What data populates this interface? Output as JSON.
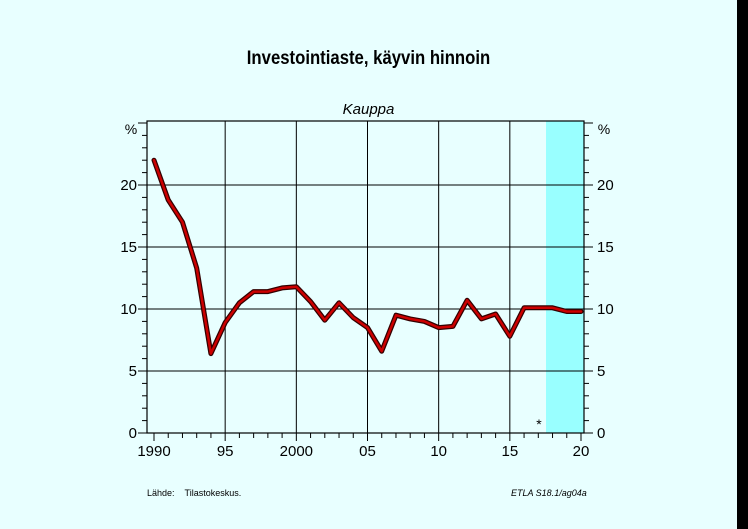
{
  "title": "Investointiaste, käyvin hinnoin",
  "subtitle": "Kauppa",
  "source_label": "Lähde:",
  "source_text": "Tilastokeskus.",
  "chart_id": "ETLA S18.1/ag04a",
  "forecast_marker": "*",
  "colors": {
    "background": "#e8ffff",
    "forecast_band": "#99ffff",
    "line": "#cc0000",
    "line_shadow": "#330000",
    "frame": "#000000"
  },
  "chart_data": {
    "type": "line",
    "title": "Investointiaste, käyvin hinnoin",
    "subtitle": "Kauppa",
    "ylabel_left": "%",
    "ylabel_right": "%",
    "xlim": [
      1990,
      2020
    ],
    "ylim": [
      0,
      25
    ],
    "x_ticks": [
      {
        "x": 1990,
        "label": "1990"
      },
      {
        "x": 1995,
        "label": "95"
      },
      {
        "x": 2000,
        "label": "2000"
      },
      {
        "x": 2005,
        "label": "05"
      },
      {
        "x": 2010,
        "label": "10"
      },
      {
        "x": 2015,
        "label": "15"
      },
      {
        "x": 2020,
        "label": "20"
      }
    ],
    "y_ticks": [
      {
        "y": 0,
        "label": "0"
      },
      {
        "y": 5,
        "label": "5"
      },
      {
        "y": 10,
        "label": "10"
      },
      {
        "y": 15,
        "label": "15"
      },
      {
        "y": 20,
        "label": "20"
      }
    ],
    "forecast_start": 2017.5,
    "grid": true,
    "series": [
      {
        "x": [
          1990,
          1991,
          1992,
          1993,
          1994,
          1995,
          1996,
          1997,
          1998,
          1999,
          2000,
          2001,
          2002,
          2003,
          2004,
          2005,
          2006,
          2007,
          2008,
          2009,
          2010,
          2011,
          2012,
          2013,
          2014,
          2015,
          2016,
          2017,
          2018,
          2019,
          2020
        ],
        "values": [
          22.0,
          18.8,
          17.0,
          13.3,
          6.4,
          8.9,
          10.5,
          11.4,
          11.4,
          11.7,
          11.8,
          10.6,
          9.1,
          10.5,
          9.3,
          8.5,
          6.6,
          9.5,
          9.2,
          9.0,
          8.5,
          8.6,
          10.7,
          9.2,
          9.6,
          7.8,
          10.1,
          10.1,
          10.1,
          9.8,
          9.8
        ]
      }
    ]
  }
}
